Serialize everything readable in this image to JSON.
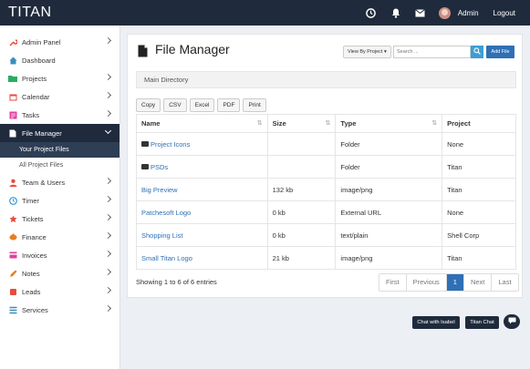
{
  "app": {
    "brand": "TITAN"
  },
  "topbar": {
    "user": "Admin",
    "logout": "Logout"
  },
  "sidebar": {
    "items": [
      {
        "label": "Admin Panel",
        "icon": "wrench-icon",
        "color": "#e74c3c",
        "chevron": true
      },
      {
        "label": "Dashboard",
        "icon": "home-icon",
        "color": "#3c8dbc",
        "chevron": false
      },
      {
        "label": "Projects",
        "icon": "folder-icon",
        "color": "#27ae60",
        "chevron": true
      },
      {
        "label": "Calendar",
        "icon": "calendar-icon",
        "color": "#e74c3c",
        "chevron": true
      },
      {
        "label": "Tasks",
        "icon": "tasks-icon",
        "color": "#e040a0",
        "chevron": true
      },
      {
        "label": "File Manager",
        "icon": "file-icon",
        "color": "#ffffff",
        "chevron": true
      },
      {
        "label": "Team & Users",
        "icon": "user-icon",
        "color": "#e74c3c",
        "chevron": true
      },
      {
        "label": "Timer",
        "icon": "clock-icon",
        "color": "#3498db",
        "chevron": true
      },
      {
        "label": "Tickets",
        "icon": "ticket-icon",
        "color": "#e74c3c",
        "chevron": true
      },
      {
        "label": "Finance",
        "icon": "money-icon",
        "color": "#e67e22",
        "chevron": true
      },
      {
        "label": "Invoices",
        "icon": "invoice-icon",
        "color": "#e040a0",
        "chevron": true
      },
      {
        "label": "Notes",
        "icon": "pencil-icon",
        "color": "#e67e22",
        "chevron": true
      },
      {
        "label": "Leads",
        "icon": "leads-icon",
        "color": "#e74c3c",
        "chevron": true
      },
      {
        "label": "Services",
        "icon": "list-icon",
        "color": "#3c8dbc",
        "chevron": true
      }
    ],
    "sub": [
      "Your Project Files",
      "All Project Files"
    ]
  },
  "header": {
    "title": "File Manager",
    "view_by": "View By Project",
    "search_placeholder": "Search ...",
    "add_file": "Add File"
  },
  "breadcrumb": "Main Directory",
  "export_buttons": [
    "Copy",
    "CSV",
    "Excel",
    "PDF",
    "Print"
  ],
  "table": {
    "columns": [
      "Name",
      "Size",
      "Type",
      "Project"
    ],
    "rows": [
      {
        "name": "Project Icons",
        "folder": true,
        "size": "",
        "type": "Folder",
        "project": "None"
      },
      {
        "name": "PSDs",
        "folder": true,
        "size": "",
        "type": "Folder",
        "project": "Titan"
      },
      {
        "name": "Big Preview",
        "folder": false,
        "size": "132 kb",
        "type": "image/png",
        "project": "Titan"
      },
      {
        "name": "Patchesoft Logo",
        "folder": false,
        "size": "0 kb",
        "type": "External URL",
        "project": "None"
      },
      {
        "name": "Shopping List",
        "folder": false,
        "size": "0 kb",
        "type": "text/plain",
        "project": "Shell Corp"
      },
      {
        "name": "Small Titan Logo",
        "folder": false,
        "size": "21 kb",
        "type": "image/png",
        "project": "Titan"
      }
    ]
  },
  "footer": {
    "showing": "Showing 1 to 6 of 6 entries",
    "pager": [
      "First",
      "Previous",
      "1",
      "Next",
      "Last"
    ]
  },
  "chat": {
    "isabel": "Chat with Isabel",
    "titan": "Titan Chat"
  }
}
